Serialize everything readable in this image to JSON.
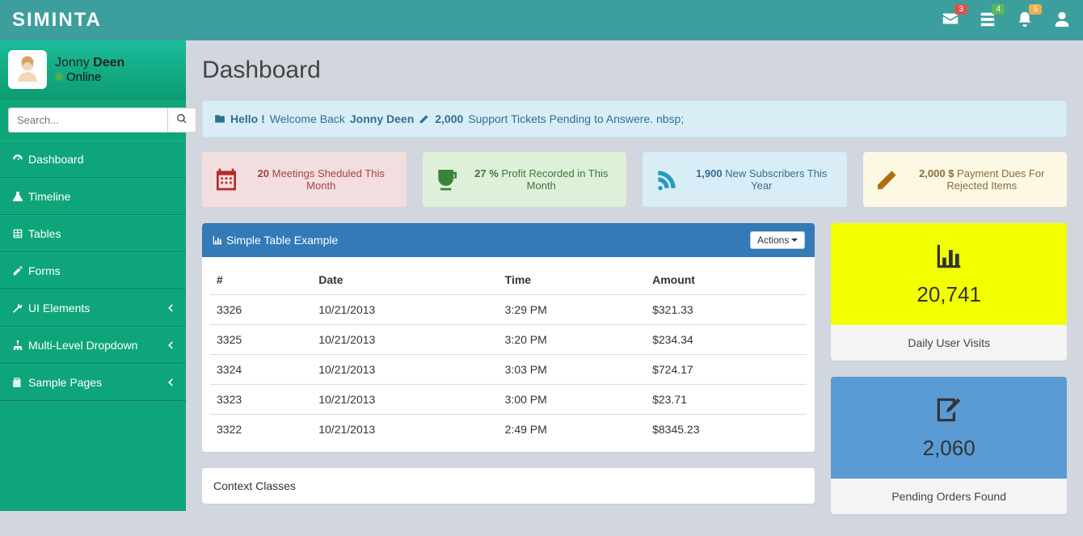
{
  "header": {
    "logo": "SIMINTA",
    "badges": {
      "mail": "3",
      "tasks": "4",
      "bell": "5"
    }
  },
  "sidebar": {
    "user": {
      "first": "Jonny",
      "last": "Deen",
      "status": "Online"
    },
    "search_placeholder": "Search...",
    "nav": [
      {
        "label": "Dashboard",
        "icon": "dashboard",
        "expandable": false
      },
      {
        "label": "Timeline",
        "icon": "flask",
        "expandable": false
      },
      {
        "label": "Tables",
        "icon": "table",
        "expandable": false
      },
      {
        "label": "Forms",
        "icon": "edit",
        "expandable": false
      },
      {
        "label": "UI Elements",
        "icon": "wrench",
        "expandable": true
      },
      {
        "label": "Multi-Level Dropdown",
        "icon": "sitemap",
        "expandable": true
      },
      {
        "label": "Sample Pages",
        "icon": "files",
        "expandable": true
      }
    ]
  },
  "page": {
    "title": "Dashboard",
    "alert": {
      "hello": "Hello !",
      "welcome": "Welcome Back",
      "name": "Jonny Deen",
      "tickets": "2,000",
      "tickets_text": "Support Tickets Pending to Answere. nbsp;"
    },
    "stats": [
      {
        "type": "red",
        "icon": "calendar",
        "bold": "20",
        "text": " Meetings Sheduled This Month"
      },
      {
        "type": "green",
        "icon": "cup",
        "bold": "27 %",
        "text": " Profit Recorded in This Month"
      },
      {
        "type": "blue",
        "icon": "rss",
        "bold": "1,900",
        "text": " New Subscribers This Year"
      },
      {
        "type": "yellow",
        "icon": "pencil",
        "bold": "2,000 $",
        "text": " Payment Dues For Rejected Items"
      }
    ],
    "table_panel": {
      "title": "Simple Table Example",
      "actions_label": "Actions",
      "columns": [
        "#",
        "Date",
        "Time",
        "Amount"
      ],
      "rows": [
        [
          "3326",
          "10/21/2013",
          "3:29 PM",
          "$321.33"
        ],
        [
          "3325",
          "10/21/2013",
          "3:20 PM",
          "$234.34"
        ],
        [
          "3324",
          "10/21/2013",
          "3:03 PM",
          "$724.17"
        ],
        [
          "3323",
          "10/21/2013",
          "3:00 PM",
          "$23.71"
        ],
        [
          "3322",
          "10/21/2013",
          "2:49 PM",
          "$8345.23"
        ]
      ]
    },
    "context_panel_title": "Context Classes",
    "metrics": [
      {
        "color": "yellow",
        "icon": "barchart",
        "value": "20,741",
        "label": "Daily User Visits"
      },
      {
        "color": "blue",
        "icon": "editbox",
        "value": "2,060",
        "label": "Pending Orders Found"
      }
    ]
  }
}
